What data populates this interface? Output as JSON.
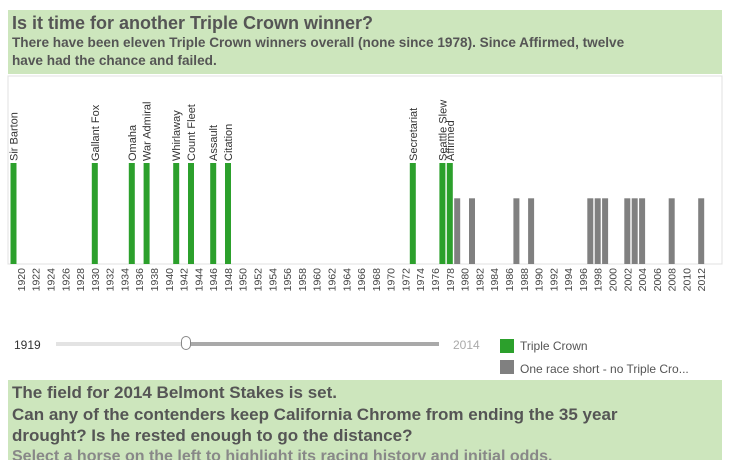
{
  "header": {
    "title": "Is it time for another Triple Crown winner?",
    "subtitle_line1": "There have been eleven Triple Crown winners overall (none since 1978).  Since Affirmed, twelve",
    "subtitle_line2": "have had the chance and failed."
  },
  "chart_data": {
    "type": "bar",
    "x_axis": {
      "range": [
        1919,
        2014
      ],
      "tick_labels": [
        "1920",
        "1922",
        "1924",
        "1926",
        "1928",
        "1930",
        "1932",
        "1934",
        "1936",
        "1938",
        "1940",
        "1942",
        "1944",
        "1946",
        "1948",
        "1950",
        "1952",
        "1954",
        "1956",
        "1958",
        "1960",
        "1962",
        "1964",
        "1966",
        "1968",
        "1970",
        "1972",
        "1974",
        "1976",
        "1978",
        "1980",
        "1982",
        "1984",
        "1986",
        "1988",
        "1990",
        "1992",
        "1994",
        "1996",
        "1998",
        "2000",
        "2002",
        "2004",
        "2006",
        "2008",
        "2010",
        "2012"
      ]
    },
    "y_range": [
      0,
      1
    ],
    "grid": false,
    "legend_position": "bottom-right",
    "series": [
      {
        "name": "Triple Crown",
        "color": "#2ca02c",
        "points": [
          {
            "year": 1919,
            "value": 1,
            "label": "Sir Barton"
          },
          {
            "year": 1930,
            "value": 1,
            "label": "Gallant Fox"
          },
          {
            "year": 1935,
            "value": 1,
            "label": "Omaha"
          },
          {
            "year": 1937,
            "value": 1,
            "label": "War Admiral"
          },
          {
            "year": 1941,
            "value": 1,
            "label": "Whirlaway"
          },
          {
            "year": 1943,
            "value": 1,
            "label": "Count Fleet"
          },
          {
            "year": 1946,
            "value": 1,
            "label": "Assault"
          },
          {
            "year": 1948,
            "value": 1,
            "label": "Citation"
          },
          {
            "year": 1973,
            "value": 1,
            "label": "Secretariat"
          },
          {
            "year": 1977,
            "value": 1,
            "label": "Seattle Slew"
          },
          {
            "year": 1978,
            "value": 1,
            "label": "Affirmed"
          }
        ]
      },
      {
        "name": "One race short - no Triple Cro...",
        "color": "#808080",
        "points": [
          {
            "year": 1979,
            "value": 0.65
          },
          {
            "year": 1981,
            "value": 0.65
          },
          {
            "year": 1987,
            "value": 0.65
          },
          {
            "year": 1989,
            "value": 0.65
          },
          {
            "year": 1997,
            "value": 0.65
          },
          {
            "year": 1998,
            "value": 0.65
          },
          {
            "year": 1999,
            "value": 0.65
          },
          {
            "year": 2002,
            "value": 0.65
          },
          {
            "year": 2003,
            "value": 0.65
          },
          {
            "year": 2004,
            "value": 0.65
          },
          {
            "year": 2008,
            "value": 0.65
          },
          {
            "year": 2012,
            "value": 0.65
          }
        ]
      }
    ]
  },
  "slider": {
    "min_label": "1919",
    "max_label": "2014",
    "value": 1919
  },
  "legend": {
    "items": [
      {
        "label": "Triple Crown",
        "color": "#2ca02c"
      },
      {
        "label": "One race short - no Triple Cro...",
        "color": "#808080"
      }
    ]
  },
  "footer": {
    "heading_line1": "The field for 2014 Belmont Stakes is set.",
    "heading_line2": "Can any of the contenders keep California Chrome from ending the 35 year",
    "heading_line3": "drought?  Is he rested enough to go the distance?",
    "instruction": "Select a horse on the left to highlight its racing history and initial odds."
  }
}
